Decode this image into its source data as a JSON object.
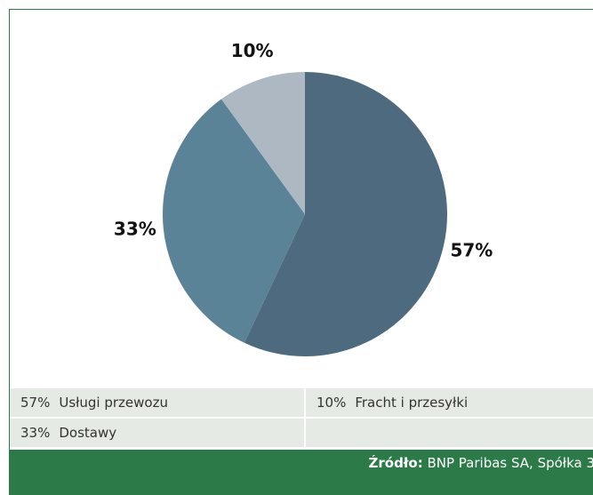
{
  "chart_data": {
    "type": "pie",
    "labels": [
      "Usługi przewozu",
      "Dostawy",
      "Fracht i przesyłki"
    ],
    "values": [
      57,
      33,
      10
    ],
    "value_labels": [
      "57%",
      "33%",
      "10%"
    ],
    "colors": [
      "#4d6a7e",
      "#5b8398",
      "#adb8c3"
    ],
    "source_label": "Źródło:",
    "source": "BNP Paribas SA, Spółka 3"
  }
}
